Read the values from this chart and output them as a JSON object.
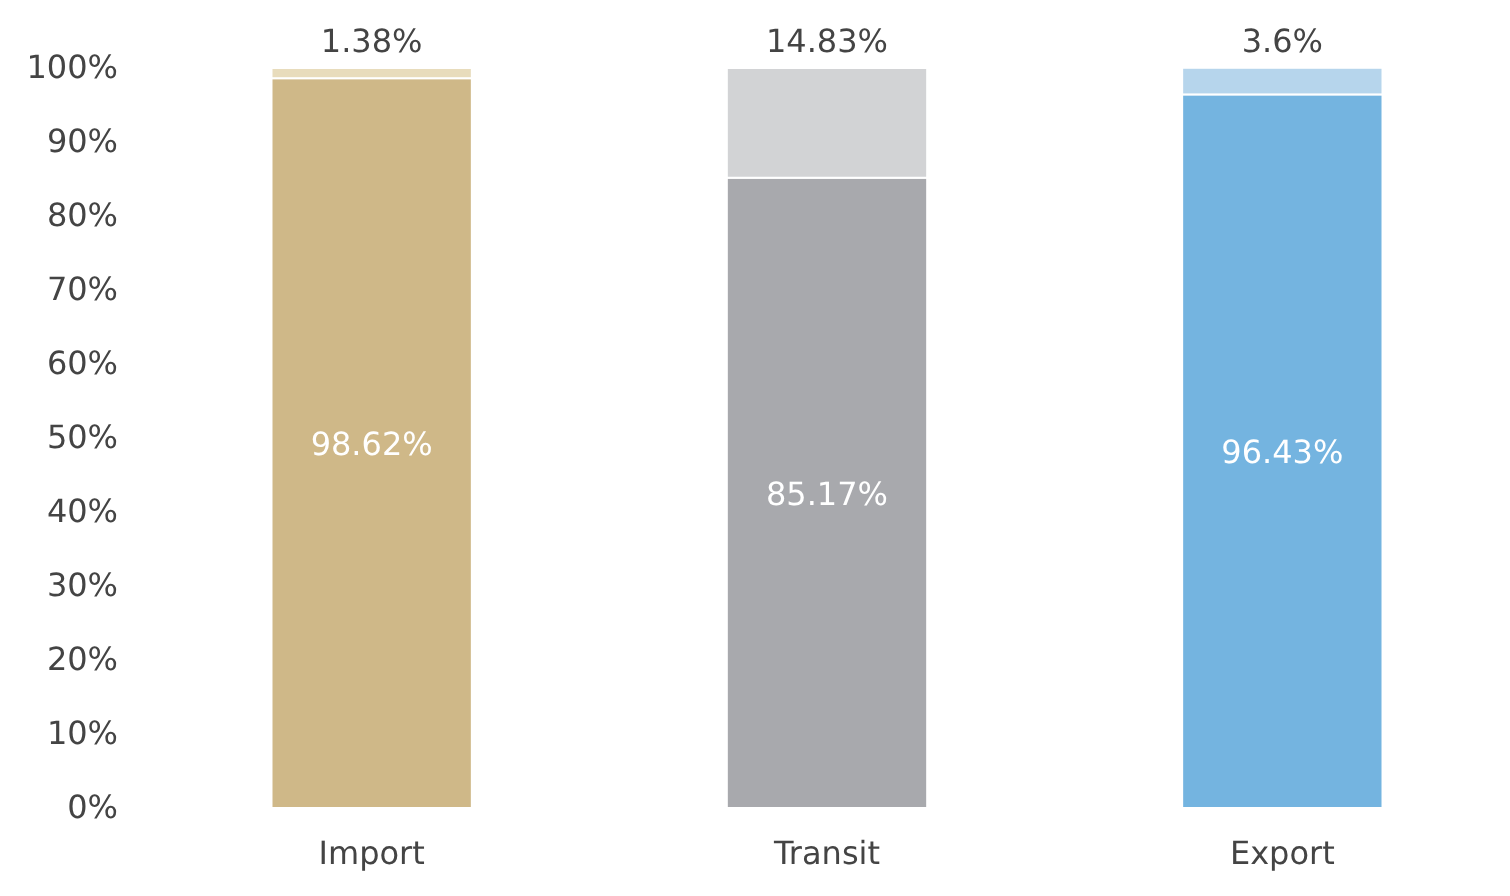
{
  "chart_data": {
    "type": "bar",
    "stacked": true,
    "categories": [
      "Import",
      "Transit",
      "Export"
    ],
    "series": [
      {
        "colors": [
          "#cfb888",
          "#a8a9ad",
          "#74b4e0"
        ],
        "values": [
          98.62,
          85.17,
          96.43
        ],
        "value_labels": [
          "98.62%",
          "85.17%",
          "96.43%"
        ]
      },
      {
        "colors": [
          "#e8dcbc",
          "#d2d3d5",
          "#b6d5ec"
        ],
        "values": [
          1.38,
          14.83,
          3.6
        ],
        "value_labels": [
          "1.38%",
          "14.83%",
          "3.6%"
        ]
      }
    ],
    "ylim": [
      0,
      100
    ],
    "yticks": [
      {
        "value": 0,
        "label": "0%"
      },
      {
        "value": 10,
        "label": "10%"
      },
      {
        "value": 20,
        "label": "20%"
      },
      {
        "value": 30,
        "label": "30%"
      },
      {
        "value": 40,
        "label": "40%"
      },
      {
        "value": 50,
        "label": "50%"
      },
      {
        "value": 60,
        "label": "60%"
      },
      {
        "value": 70,
        "label": "70%"
      },
      {
        "value": 80,
        "label": "80%"
      },
      {
        "value": 90,
        "label": "90%"
      },
      {
        "value": 100,
        "label": "100%"
      }
    ],
    "grid": false
  }
}
